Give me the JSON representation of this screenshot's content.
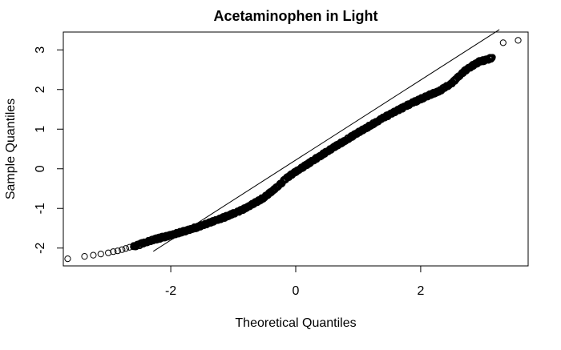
{
  "chart_data": {
    "type": "scatter",
    "subtype": "qq-plot",
    "title": "Acetaminophen in Light",
    "xlabel": "Theoretical Quantiles",
    "ylabel": "Sample Quantiles",
    "xlim": [
      -3.72,
      3.72
    ],
    "ylim": [
      -2.45,
      3.45
    ],
    "xticks": [
      -2,
      0,
      2
    ],
    "yticks": [
      -2,
      -1,
      0,
      1,
      2,
      3
    ],
    "xtick_labels": [
      "-2",
      "0",
      "2"
    ],
    "ytick_labels": [
      "-2",
      "-1",
      "0",
      "1",
      "2",
      "3"
    ],
    "grid": false,
    "legend": "none",
    "reference_line": {
      "intercept": 0.22,
      "slope": 1.01
    },
    "series": [
      {
        "marker": "open-circle",
        "color": "#000000",
        "x": [
          -3.65,
          -3.38,
          -3.24,
          -3.12,
          -3.0,
          -2.92,
          -2.85,
          -2.78,
          -2.72,
          -2.66,
          3.32,
          3.56
        ],
        "y": [
          -2.27,
          -2.21,
          -2.18,
          -2.15,
          -2.12,
          -2.09,
          -2.07,
          -2.04,
          -2.01,
          -1.98,
          3.18,
          3.24
        ]
      }
    ],
    "quantile_curve": {
      "n_points": 1500,
      "x": [
        -2.6,
        -2.3,
        -2.0,
        -1.7,
        -1.4,
        -1.1,
        -0.8,
        -0.5,
        -0.3,
        -0.15,
        0.0,
        0.3,
        0.6,
        1.0,
        1.4,
        1.8,
        2.1,
        2.3,
        2.5,
        2.7,
        2.85,
        2.95,
        3.05,
        3.15
      ],
      "y": [
        -1.95,
        -1.78,
        -1.66,
        -1.52,
        -1.36,
        -1.18,
        -0.98,
        -0.7,
        -0.45,
        -0.22,
        -0.06,
        0.25,
        0.55,
        0.93,
        1.3,
        1.63,
        1.85,
        1.98,
        2.18,
        2.48,
        2.64,
        2.73,
        2.76,
        2.83
      ]
    }
  }
}
